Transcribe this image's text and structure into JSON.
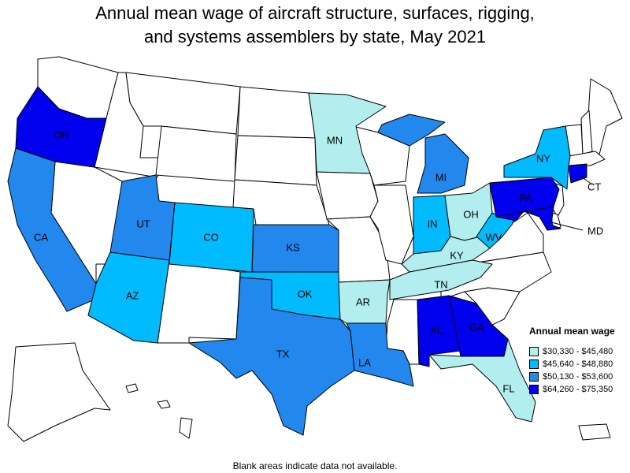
{
  "title": {
    "line1": "Annual mean wage of aircraft structure, surfaces, rigging,",
    "line2": "and systems assemblers by state, May 2021"
  },
  "legend": {
    "title": "Annual mean wage",
    "items": [
      {
        "label": "$30,330 - $45,480",
        "color": "#b3eeee"
      },
      {
        "label": "$45,640 - $48,880",
        "color": "#00bbff"
      },
      {
        "label": "$50,130 - $53,600",
        "color": "#2288ee"
      },
      {
        "label": "$64,260 - $75,350",
        "color": "#0000ee"
      }
    ]
  },
  "footnote": "Blank areas indicate data not available.",
  "no_data_color": "#ffffff",
  "states": [
    {
      "abbr": "OR",
      "tier": 4
    },
    {
      "abbr": "CA",
      "tier": 3
    },
    {
      "abbr": "UT",
      "tier": 3
    },
    {
      "abbr": "CO",
      "tier": 2
    },
    {
      "abbr": "AZ",
      "tier": 2
    },
    {
      "abbr": "KS",
      "tier": 3
    },
    {
      "abbr": "OK",
      "tier": 2
    },
    {
      "abbr": "TX",
      "tier": 3
    },
    {
      "abbr": "MN",
      "tier": 1
    },
    {
      "abbr": "AR",
      "tier": 1
    },
    {
      "abbr": "LA",
      "tier": 3
    },
    {
      "abbr": "MI",
      "tier": 3
    },
    {
      "abbr": "IN",
      "tier": 2
    },
    {
      "abbr": "OH",
      "tier": 1
    },
    {
      "abbr": "KY",
      "tier": 1
    },
    {
      "abbr": "TN",
      "tier": 1
    },
    {
      "abbr": "AL",
      "tier": 4
    },
    {
      "abbr": "GA",
      "tier": 4
    },
    {
      "abbr": "FL",
      "tier": 1
    },
    {
      "abbr": "WV",
      "tier": 2
    },
    {
      "abbr": "PA",
      "tier": 4
    },
    {
      "abbr": "NY",
      "tier": 2
    },
    {
      "abbr": "MD",
      "tier": 4
    },
    {
      "abbr": "CT",
      "tier": 4
    }
  ]
}
